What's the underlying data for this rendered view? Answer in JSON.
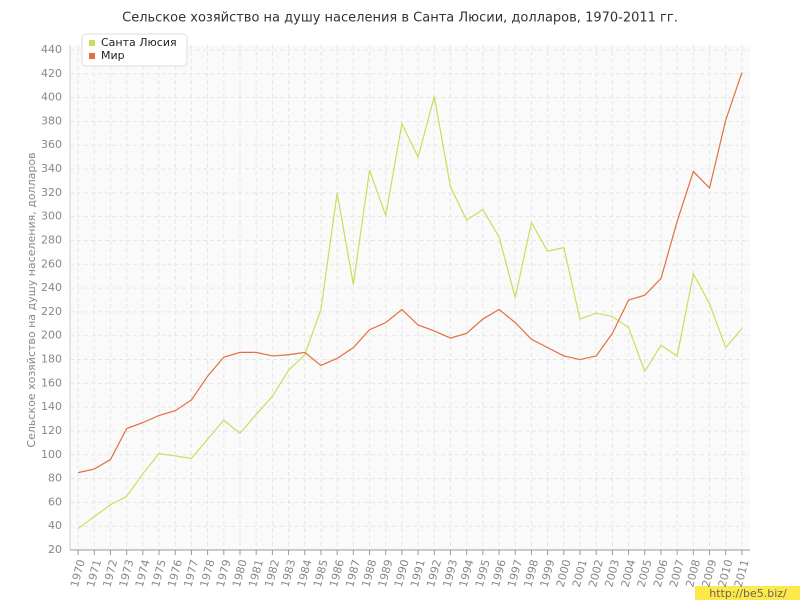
{
  "chart_data": {
    "type": "line",
    "title": "Сельское хозяйство на душу населения в Санта Люсии, долларов, 1970-2011 гг.",
    "y_label": "Сельское хозяйство на душу населения, долларов",
    "watermark": "http://be5.biz/",
    "categories": [
      "1970",
      "1971",
      "1972",
      "1973",
      "1974",
      "1975",
      "1976",
      "1977",
      "1978",
      "1979",
      "1980",
      "1981",
      "1982",
      "1983",
      "1984",
      "1985",
      "1986",
      "1987",
      "1988",
      "1989",
      "1990",
      "1991",
      "1992",
      "1993",
      "1994",
      "1995",
      "1996",
      "1997",
      "1998",
      "1999",
      "2000",
      "2001",
      "2002",
      "2003",
      "2004",
      "2005",
      "2006",
      "2007",
      "2008",
      "2009",
      "2010",
      "2011"
    ],
    "series": [
      {
        "name": "Санта Люсия",
        "color": "#c5e05a",
        "values": [
          38,
          48,
          58,
          65,
          84,
          101,
          99,
          97,
          113,
          129,
          118,
          134,
          149,
          171,
          184,
          222,
          320,
          243,
          339,
          301,
          378,
          350,
          401,
          325,
          297,
          306,
          283,
          232,
          295,
          271,
          274,
          214,
          219,
          216,
          207,
          170,
          192,
          183,
          252,
          227,
          190,
          206
        ]
      },
      {
        "name": "Мир",
        "color": "#e0703f",
        "values": [
          85,
          88,
          96,
          122,
          127,
          133,
          137,
          146,
          166,
          182,
          186,
          186,
          183,
          184,
          186,
          175,
          181,
          190,
          205,
          211,
          222,
          209,
          204,
          198,
          202,
          214,
          222,
          211,
          197,
          190,
          183,
          180,
          183,
          202,
          230,
          234,
          248,
          296,
          338,
          324,
          381,
          421
        ]
      }
    ],
    "ylim": [
      20,
      440
    ],
    "yticks": [
      20,
      40,
      60,
      80,
      100,
      120,
      140,
      160,
      180,
      200,
      220,
      240,
      260,
      280,
      300,
      320,
      340,
      360,
      380,
      400,
      420,
      440
    ],
    "grid": true,
    "legend": "top-left"
  }
}
